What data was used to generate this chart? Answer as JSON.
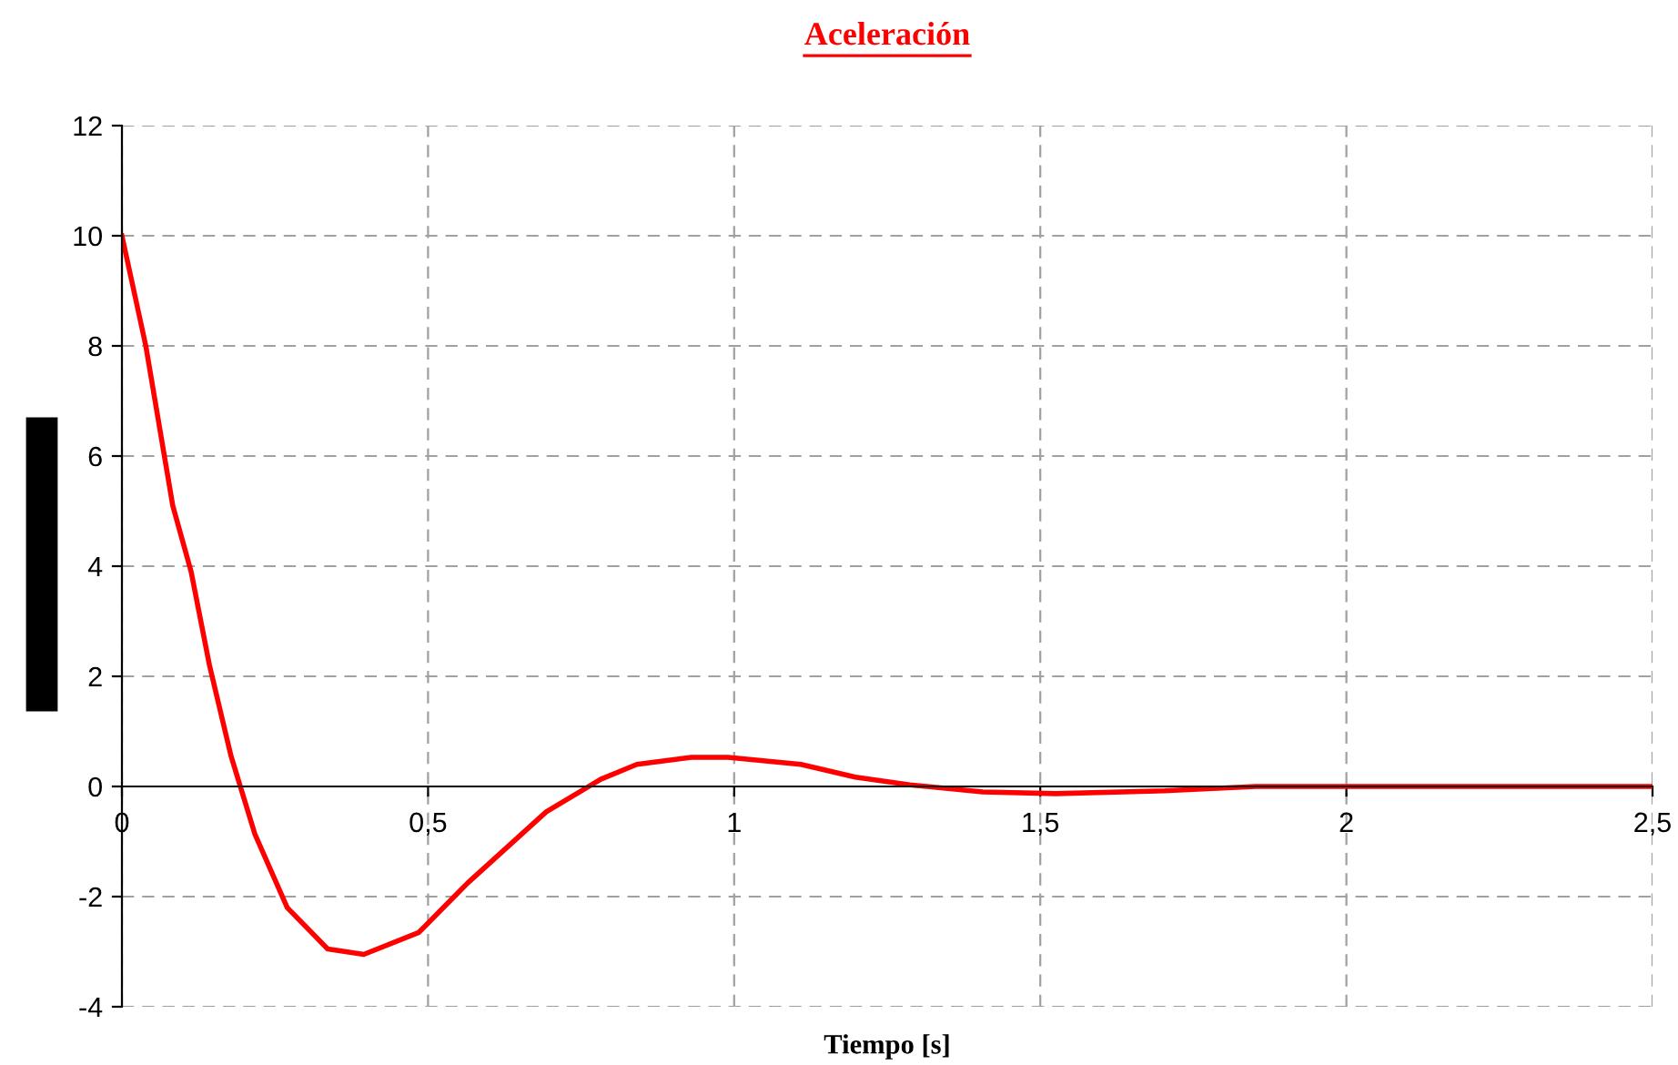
{
  "chart_data": {
    "type": "line",
    "title": "Aceleración",
    "xlabel": "Tiempo [s]",
    "series": [
      {
        "color": "#ff0000",
        "x": [
          0,
          0.039,
          0.083,
          0.113,
          0.143,
          0.178,
          0.217,
          0.27,
          0.336,
          0.395,
          0.485,
          0.565,
          0.693,
          0.782,
          0.841,
          0.93,
          0.99,
          1.109,
          1.198,
          1.287,
          1.406,
          1.525,
          1.703,
          1.852,
          2.5
        ],
        "values": [
          10.0,
          8.0,
          5.1,
          3.9,
          2.2,
          0.56,
          -0.86,
          -2.2,
          -2.95,
          -3.05,
          -2.65,
          -1.75,
          -0.46,
          0.13,
          0.4,
          0.53,
          0.53,
          0.4,
          0.17,
          0.03,
          -0.1,
          -0.13,
          -0.08,
          0,
          0
        ]
      }
    ],
    "xlim": [
      0,
      2.5
    ],
    "ylim": [
      -4,
      12
    ],
    "xticks": [
      0,
      {
        "value": 0.5,
        "label": "0,5"
      },
      1,
      {
        "value": 1.5,
        "label": "1,5"
      },
      2,
      {
        "value": 2.5,
        "label": "2,5"
      }
    ],
    "yticks": [
      -4,
      -2,
      0,
      2,
      4,
      6,
      8,
      10,
      12
    ],
    "grid": true,
    "legend": false,
    "marker": "none",
    "line_style": "solid"
  }
}
